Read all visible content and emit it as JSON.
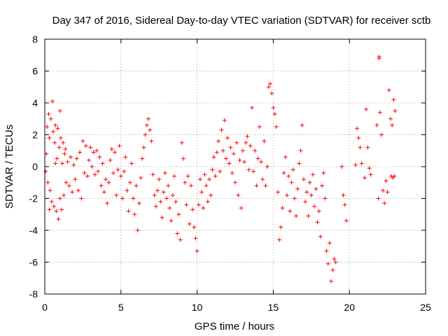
{
  "chart_data": {
    "type": "scatter",
    "title": "Day 347 of 2016, Sidereal Day-to-day VTEC variation (SDTVAR) for receiver sctb",
    "xlabel": "GPS time / hours",
    "ylabel": "SDTVAR / TECUs",
    "xlim": [
      0,
      25
    ],
    "ylim": [
      -8,
      8
    ],
    "xticks": [
      0,
      5,
      10,
      15,
      20,
      25
    ],
    "yticks": [
      -8,
      -6,
      -4,
      -2,
      0,
      2,
      4,
      6,
      8
    ],
    "xtick_labels": [
      "0",
      "5",
      "10",
      "15",
      "20",
      "25"
    ],
    "ytick_labels": [
      "-8",
      "-6",
      "-4",
      "-2",
      "0",
      "2",
      "4",
      "6",
      "8"
    ],
    "grid": true,
    "marker": "+",
    "series_color": "#ff0000",
    "series": [
      {
        "name": "SDTVAR",
        "points": [
          [
            0.05,
            -0.3
          ],
          [
            0.1,
            0.8
          ],
          [
            0.15,
            2.5
          ],
          [
            0.2,
            -1.0
          ],
          [
            0.25,
            3.3
          ],
          [
            0.3,
            1.8
          ],
          [
            0.35,
            -1.5
          ],
          [
            0.4,
            3.0
          ],
          [
            0.45,
            -2.2
          ],
          [
            0.5,
            4.1
          ],
          [
            0.55,
            2.2
          ],
          [
            0.6,
            -2.5
          ],
          [
            0.65,
            1.5
          ],
          [
            0.7,
            2.6
          ],
          [
            0.75,
            -2.8
          ],
          [
            0.8,
            0.5
          ],
          [
            0.85,
            2.4
          ],
          [
            0.9,
            -3.3
          ],
          [
            0.95,
            1.2
          ],
          [
            1.0,
            -2.0
          ],
          [
            1.05,
            1.8
          ],
          [
            1.1,
            -2.7
          ],
          [
            1.15,
            0.2
          ],
          [
            1.2,
            1.5
          ],
          [
            1.25,
            -1.8
          ],
          [
            1.3,
            0.8
          ],
          [
            1.35,
            1.1
          ],
          [
            1.4,
            -1.0
          ],
          [
            1.5,
            0.3
          ],
          [
            1.6,
            -1.2
          ],
          [
            1.7,
            0.6
          ],
          [
            1.8,
            -1.6
          ],
          [
            1.9,
            0.1
          ],
          [
            2.0,
            -0.8
          ],
          [
            2.1,
            0.5
          ],
          [
            2.2,
            -1.5
          ],
          [
            2.3,
            0.9
          ],
          [
            2.4,
            -2.0
          ],
          [
            2.5,
            1.6
          ],
          [
            2.6,
            -0.4
          ],
          [
            2.7,
            1.3
          ],
          [
            2.8,
            -0.6
          ],
          [
            2.9,
            0.4
          ],
          [
            3.0,
            1.2
          ],
          [
            3.1,
            0.0
          ],
          [
            3.2,
            0.9
          ],
          [
            3.3,
            -0.5
          ],
          [
            3.4,
            1.0
          ],
          [
            3.5,
            -0.3
          ],
          [
            3.6,
            0.6
          ],
          [
            3.7,
            -1.2
          ],
          [
            3.8,
            0.2
          ],
          [
            3.9,
            -1.6
          ],
          [
            4.0,
            -0.8
          ],
          [
            4.1,
            -2.3
          ],
          [
            4.2,
            -1.0
          ],
          [
            4.3,
            0.4
          ],
          [
            4.4,
            1.1
          ],
          [
            4.5,
            -0.4
          ],
          [
            4.6,
            0.9
          ],
          [
            4.7,
            -1.8
          ],
          [
            4.8,
            -0.2
          ],
          [
            4.9,
            1.3
          ],
          [
            5.0,
            -0.6
          ],
          [
            5.1,
            -2.0
          ],
          [
            5.2,
            -0.3
          ],
          [
            5.3,
            0.6
          ],
          [
            5.4,
            -1.5
          ],
          [
            5.5,
            -2.8
          ],
          [
            5.6,
            -1.0
          ],
          [
            5.7,
            0.2
          ],
          [
            5.8,
            -2.0
          ],
          [
            5.9,
            -3.0
          ],
          [
            6.0,
            -1.2
          ],
          [
            6.1,
            -4.0
          ],
          [
            6.2,
            -2.3
          ],
          [
            6.3,
            -0.7
          ],
          [
            6.4,
            0.5
          ],
          [
            6.5,
            1.2
          ],
          [
            6.6,
            2.0
          ],
          [
            6.7,
            2.6
          ],
          [
            6.8,
            3.0
          ],
          [
            6.9,
            2.3
          ],
          [
            7.0,
            1.6
          ],
          [
            7.1,
            -0.5
          ],
          [
            7.2,
            -1.8
          ],
          [
            7.3,
            -2.5
          ],
          [
            7.4,
            -1.5
          ],
          [
            7.5,
            -0.8
          ],
          [
            7.6,
            -2.2
          ],
          [
            7.7,
            -3.2
          ],
          [
            7.8,
            -1.6
          ],
          [
            7.9,
            -0.4
          ],
          [
            8.0,
            -2.0
          ],
          [
            8.1,
            -1.2
          ],
          [
            8.2,
            -2.6
          ],
          [
            8.3,
            -3.4
          ],
          [
            8.4,
            -1.8
          ],
          [
            8.5,
            -0.6
          ],
          [
            8.6,
            -2.2
          ],
          [
            8.7,
            -4.2
          ],
          [
            8.8,
            -3.0
          ],
          [
            8.9,
            -4.6
          ],
          [
            9.0,
            1.5
          ],
          [
            9.1,
            0.5
          ],
          [
            9.2,
            -1.0
          ],
          [
            9.3,
            -2.4
          ],
          [
            9.4,
            -0.6
          ],
          [
            9.5,
            -3.6
          ],
          [
            9.6,
            -1.2
          ],
          [
            9.7,
            -2.7
          ],
          [
            9.8,
            -3.8
          ],
          [
            9.9,
            -4.5
          ],
          [
            10.0,
            -5.3
          ],
          [
            10.1,
            -2.4
          ],
          [
            10.2,
            -0.8
          ],
          [
            10.3,
            -1.6
          ],
          [
            10.4,
            -2.6
          ],
          [
            10.5,
            -0.5
          ],
          [
            10.6,
            -1.2
          ],
          [
            10.7,
            -2.2
          ],
          [
            10.8,
            -0.8
          ],
          [
            10.9,
            -1.8
          ],
          [
            11.0,
            -0.2
          ],
          [
            11.1,
            0.6
          ],
          [
            11.2,
            -0.6
          ],
          [
            11.3,
            0.9
          ],
          [
            11.4,
            1.6
          ],
          [
            11.5,
            -0.3
          ],
          [
            11.6,
            2.3
          ],
          [
            11.7,
            1.0
          ],
          [
            11.8,
            2.9
          ],
          [
            11.9,
            0.5
          ],
          [
            12.0,
            1.8
          ],
          [
            12.1,
            0.2
          ],
          [
            12.2,
            1.2
          ],
          [
            12.3,
            -0.4
          ],
          [
            12.4,
            0.8
          ],
          [
            12.5,
            -1.0
          ],
          [
            12.6,
            1.5
          ],
          [
            12.7,
            -1.8
          ],
          [
            12.8,
            0.4
          ],
          [
            12.9,
            -2.6
          ],
          [
            13.0,
            1.0
          ],
          [
            13.1,
            0.3
          ],
          [
            13.2,
            1.5
          ],
          [
            13.3,
            1.9
          ],
          [
            13.4,
            -0.2
          ],
          [
            13.5,
            1.3
          ],
          [
            13.6,
            3.7
          ],
          [
            13.7,
            -0.3
          ],
          [
            13.8,
            1.0
          ],
          [
            13.9,
            -1.2
          ],
          [
            14.0,
            0.5
          ],
          [
            14.1,
            2.5
          ],
          [
            14.2,
            0.3
          ],
          [
            14.3,
            -0.8
          ],
          [
            14.4,
            1.6
          ],
          [
            14.5,
            -1.2
          ],
          [
            14.6,
            0.0
          ],
          [
            14.7,
            5.0
          ],
          [
            14.8,
            5.2
          ],
          [
            14.9,
            4.6
          ],
          [
            15.0,
            3.7
          ],
          [
            15.1,
            3.3
          ],
          [
            15.2,
            2.5
          ],
          [
            15.3,
            -1.6
          ],
          [
            15.4,
            -4.6
          ],
          [
            15.5,
            -3.8
          ],
          [
            15.6,
            -2.6
          ],
          [
            15.7,
            -0.4
          ],
          [
            15.8,
            0.6
          ],
          [
            15.9,
            -1.8
          ],
          [
            16.0,
            -0.6
          ],
          [
            16.1,
            -2.8
          ],
          [
            16.2,
            -1.0
          ],
          [
            16.3,
            -0.2
          ],
          [
            16.4,
            -2.0
          ],
          [
            16.5,
            -3.1
          ],
          [
            16.6,
            -1.4
          ],
          [
            16.7,
            0.2
          ],
          [
            16.8,
            1.0
          ],
          [
            16.9,
            2.6
          ],
          [
            17.0,
            -0.8
          ],
          [
            17.1,
            -2.2
          ],
          [
            17.2,
            -1.6
          ],
          [
            17.3,
            -3.1
          ],
          [
            17.4,
            -1.0
          ],
          [
            17.5,
            -1.8
          ],
          [
            17.6,
            -0.5
          ],
          [
            17.7,
            -2.5
          ],
          [
            17.8,
            -1.4
          ],
          [
            17.9,
            -3.5
          ],
          [
            18.0,
            -2.8
          ],
          [
            18.1,
            -4.4
          ],
          [
            18.2,
            -1.2
          ],
          [
            18.3,
            -0.4
          ],
          [
            18.4,
            -2.0
          ],
          [
            18.5,
            -5.3
          ],
          [
            18.6,
            -6.1
          ],
          [
            18.7,
            -4.8
          ],
          [
            18.8,
            -7.2
          ],
          [
            18.9,
            -6.5
          ],
          [
            19.0,
            -5.8
          ],
          [
            19.1,
            -6.0
          ],
          [
            19.5,
            0.0
          ],
          [
            19.6,
            -1.8
          ],
          [
            19.7,
            -2.4
          ],
          [
            19.8,
            -3.4
          ],
          [
            20.4,
            0.1
          ],
          [
            20.5,
            2.4
          ],
          [
            20.6,
            1.8
          ],
          [
            20.7,
            1.2
          ],
          [
            20.8,
            0.2
          ],
          [
            21.0,
            -0.7
          ],
          [
            21.1,
            3.6
          ],
          [
            21.2,
            1.2
          ],
          [
            21.3,
            -0.1
          ],
          [
            21.4,
            -0.5
          ],
          [
            21.8,
            2.6
          ],
          [
            21.9,
            -2.0
          ],
          [
            22.0,
            3.4
          ],
          [
            22.1,
            2.0
          ],
          [
            22.2,
            -1.5
          ],
          [
            22.3,
            -2.3
          ],
          [
            22.4,
            -0.9
          ],
          [
            22.5,
            -1.6
          ],
          [
            22.6,
            4.8
          ],
          [
            22.7,
            3.0
          ],
          [
            22.8,
            2.6
          ],
          [
            22.9,
            4.2
          ],
          [
            23.0,
            3.5
          ],
          [
            22.75,
            -0.6
          ],
          [
            22.85,
            -0.7
          ],
          [
            22.95,
            -0.6
          ],
          [
            21.95,
            6.9
          ],
          [
            21.95,
            6.8
          ],
          [
            0.3,
            -2.7
          ],
          [
            1.0,
            3.5
          ],
          [
            0.7,
            0.2
          ]
        ]
      }
    ]
  }
}
